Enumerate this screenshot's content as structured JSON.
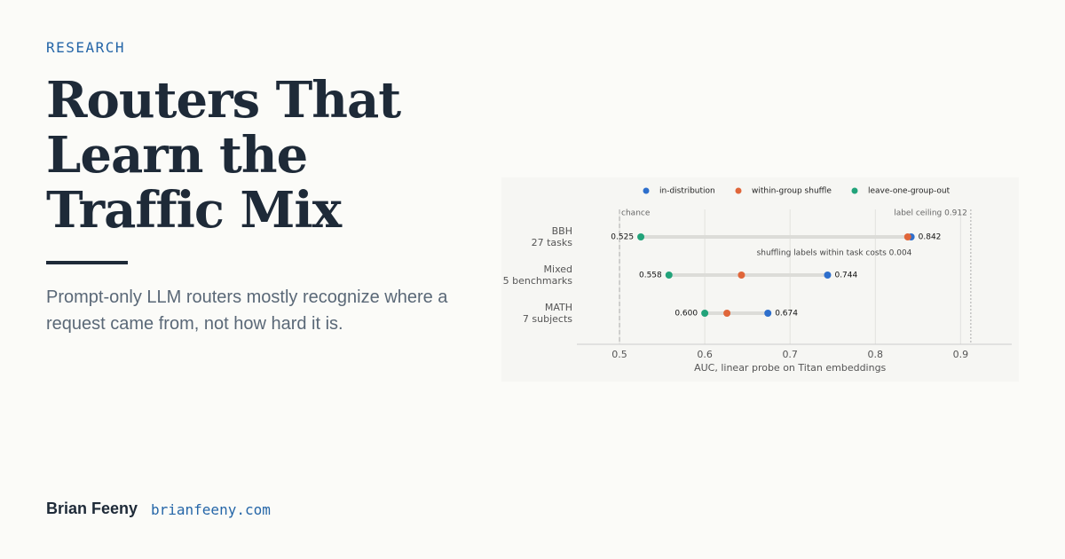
{
  "kicker": "RESEARCH",
  "title": "Routers That Learn the Traffic Mix",
  "subtitle": "Prompt-only LLM routers mostly recognize where a request came from, not how hard it is.",
  "author": "Brian Feeny",
  "site": "brianfeeny.com",
  "chart_data": {
    "type": "dumbbell",
    "categories": [
      "BBH",
      "Mixed",
      "MATH"
    ],
    "category_sublabels": [
      "27 tasks",
      "5 benchmarks",
      "7 subjects"
    ],
    "series": [
      {
        "name": "in-distribution",
        "color": "#2e6fcc",
        "values": [
          0.842,
          0.744,
          0.674
        ],
        "value_labels": [
          "0.842",
          "0.744",
          "0.674"
        ]
      },
      {
        "name": "within-group shuffle",
        "color": "#e0663a",
        "values": [
          0.838,
          0.643,
          0.626
        ]
      },
      {
        "name": "leave-one-group-out",
        "color": "#22a37a",
        "values": [
          0.525,
          0.558,
          0.6
        ],
        "value_labels": [
          "0.525",
          "0.558",
          "0.600"
        ]
      }
    ],
    "xlim": [
      0.45,
      0.96
    ],
    "xticks": [
      0.5,
      0.6,
      0.7,
      0.8,
      0.9
    ],
    "xlabel": "AUC, linear probe on Titan embeddings",
    "grid": true,
    "reference_lines": [
      {
        "value": 0.5,
        "label": "chance",
        "style": "dashed"
      },
      {
        "value": 0.912,
        "label": "label ceiling 0.912",
        "style": "dotted"
      }
    ],
    "annotation": "shuffling labels within task costs 0.004"
  }
}
